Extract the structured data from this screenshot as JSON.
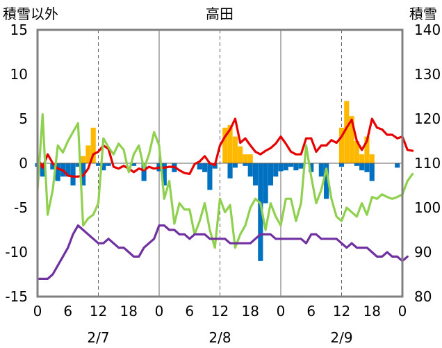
{
  "chart_data": {
    "type": "bar+line",
    "title": "高田",
    "y_left_label": "積雪以外",
    "y_right_label": "積雪",
    "y_left_range": [
      -15,
      15
    ],
    "y_right_range": [
      80,
      140
    ],
    "y_left_ticks": [
      "15",
      "10",
      "5",
      "0",
      "-5",
      "-10",
      "-15"
    ],
    "y_right_ticks": [
      "140",
      "130",
      "120",
      "110",
      "100",
      "90",
      "80"
    ],
    "x_range_hours": [
      0,
      72
    ],
    "x_tick_labels": [
      "0",
      "6",
      "12",
      "18",
      "0",
      "6",
      "12",
      "18",
      "0",
      "6",
      "12",
      "18",
      "0"
    ],
    "date_labels": [
      "2/7",
      "2/8",
      "2/9"
    ],
    "grid": "vertical dashed at 12h, solid at day boundaries",
    "legend": "none",
    "colors": {
      "snowfall_bar": "#FFB800",
      "depth_change_bar": "#0070C0",
      "red_series": "#E60000",
      "green_series": "#8FD14F",
      "purple_series": "#7030A0",
      "axis": "#808080"
    },
    "series": [
      {
        "axis": "left",
        "kind": "bar",
        "color": "#FFB800",
        "points": [
          [
            9,
            0.8
          ],
          [
            10,
            2
          ],
          [
            11,
            4
          ],
          [
            37,
            4
          ],
          [
            38,
            4.3
          ],
          [
            39,
            3
          ],
          [
            40,
            1.9
          ],
          [
            41,
            1
          ],
          [
            42,
            1
          ],
          [
            60,
            4
          ],
          [
            61,
            7
          ],
          [
            62,
            5.3
          ],
          [
            63,
            2.5
          ],
          [
            64,
            1
          ],
          [
            65,
            3
          ],
          [
            66,
            1
          ]
        ]
      },
      {
        "axis": "left",
        "kind": "bar",
        "color": "#0070C0",
        "points": [
          [
            0,
            -0.4
          ],
          [
            1,
            -1.5
          ],
          [
            3,
            -0.7
          ],
          [
            4,
            -2
          ],
          [
            5,
            -1.5
          ],
          [
            6,
            -1.5
          ],
          [
            7,
            -2.5
          ],
          [
            8,
            -0.4
          ],
          [
            9,
            -2.5
          ],
          [
            12,
            -0.3
          ],
          [
            13,
            -0.8
          ],
          [
            14,
            -0.3
          ],
          [
            19,
            -0.3
          ],
          [
            21,
            -2
          ],
          [
            24,
            -0.9
          ],
          [
            25,
            -2.5
          ],
          [
            27,
            -1
          ],
          [
            32,
            -0.7
          ],
          [
            33,
            -1
          ],
          [
            34,
            -3
          ],
          [
            35,
            -0.6
          ],
          [
            38,
            -1.7
          ],
          [
            39,
            -0.5
          ],
          [
            41,
            -0.3
          ],
          [
            42,
            -1.5
          ],
          [
            43,
            -2.5
          ],
          [
            44,
            -11
          ],
          [
            45,
            -4.5
          ],
          [
            46,
            -2.5
          ],
          [
            47,
            -1.5
          ],
          [
            48,
            -0.9
          ],
          [
            49,
            -0.8
          ],
          [
            50,
            -0.4
          ],
          [
            51,
            -0.8
          ],
          [
            52,
            -0.6
          ],
          [
            54,
            -1
          ],
          [
            56,
            -1.5
          ],
          [
            57,
            -4
          ],
          [
            60,
            -0.4
          ],
          [
            63,
            -0.3
          ],
          [
            64,
            -0.8
          ],
          [
            65,
            -1
          ],
          [
            66,
            -2
          ],
          [
            71,
            -0.5
          ]
        ]
      },
      {
        "axis": "left",
        "kind": "line",
        "color": "#E60000",
        "points": [
          [
            0,
            0.6
          ],
          [
            1,
            -0.5
          ],
          [
            2,
            1
          ],
          [
            3,
            0
          ],
          [
            4,
            -0.6
          ],
          [
            5,
            -0.8
          ],
          [
            6,
            -1.4
          ],
          [
            7,
            -1.5
          ],
          [
            8,
            -1.5
          ],
          [
            9,
            -1.4
          ],
          [
            10,
            -0.6
          ],
          [
            11,
            1
          ],
          [
            12,
            1.3
          ],
          [
            13,
            2
          ],
          [
            14,
            1.6
          ],
          [
            15,
            -0.4
          ],
          [
            16,
            -0.6
          ],
          [
            17,
            -0.3
          ],
          [
            18,
            -0.6
          ],
          [
            19,
            -1
          ],
          [
            20,
            -0.6
          ],
          [
            21,
            -0.8
          ],
          [
            22,
            -0.4
          ],
          [
            23,
            -0.6
          ],
          [
            24,
            -0.5
          ],
          [
            25,
            -0.5
          ],
          [
            26,
            -0.4
          ],
          [
            27,
            -0.4
          ],
          [
            28,
            -0.8
          ],
          [
            29,
            -1.1
          ],
          [
            30,
            -1.2
          ],
          [
            31,
            -0.1
          ],
          [
            32,
            0.2
          ],
          [
            33,
            0.8
          ],
          [
            34,
            0
          ],
          [
            35,
            -0.2
          ],
          [
            36,
            2
          ],
          [
            37,
            3
          ],
          [
            38,
            3.8
          ],
          [
            39,
            5
          ],
          [
            40,
            2.3
          ],
          [
            41,
            2.8
          ],
          [
            42,
            2
          ],
          [
            43,
            1.3
          ],
          [
            44,
            1
          ],
          [
            45,
            1.4
          ],
          [
            46,
            1.7
          ],
          [
            47,
            2.2
          ],
          [
            48,
            3
          ],
          [
            49,
            2.2
          ],
          [
            50,
            1.3
          ],
          [
            51,
            1
          ],
          [
            52,
            1
          ],
          [
            53,
            2.8
          ],
          [
            54,
            2.8
          ],
          [
            55,
            1.3
          ],
          [
            56,
            2
          ],
          [
            57,
            2
          ],
          [
            58,
            2.6
          ],
          [
            59,
            2.3
          ],
          [
            60,
            3
          ],
          [
            61,
            4
          ],
          [
            62,
            4.9
          ],
          [
            63,
            2.5
          ],
          [
            64,
            1.5
          ],
          [
            65,
            2.5
          ],
          [
            66,
            5
          ],
          [
            67,
            4
          ],
          [
            68,
            3.8
          ],
          [
            69,
            3.2
          ],
          [
            70,
            3.2
          ],
          [
            71,
            2.8
          ],
          [
            72,
            3
          ],
          [
            73,
            1.5
          ],
          [
            74,
            1.4
          ]
        ]
      },
      {
        "axis": "left",
        "kind": "line",
        "color": "#8FD14F",
        "points": [
          [
            0,
            -3
          ],
          [
            1,
            5.5
          ],
          [
            2,
            -5.8
          ],
          [
            3,
            -3
          ],
          [
            4,
            2
          ],
          [
            5,
            1.2
          ],
          [
            6,
            2.5
          ],
          [
            7,
            3.5
          ],
          [
            8,
            4.5
          ],
          [
            9,
            -7
          ],
          [
            10,
            -6.2
          ],
          [
            11,
            -5.8
          ],
          [
            12,
            -4.5
          ],
          [
            13,
            2.8
          ],
          [
            14,
            1.8
          ],
          [
            15,
            1
          ],
          [
            16,
            2.2
          ],
          [
            17,
            1.5
          ],
          [
            18,
            -1
          ],
          [
            19,
            1
          ],
          [
            20,
            2
          ],
          [
            21,
            -0.6
          ],
          [
            22,
            1
          ],
          [
            23,
            3.5
          ],
          [
            24,
            2
          ],
          [
            25,
            -4
          ],
          [
            26,
            -2
          ],
          [
            27,
            -6.8
          ],
          [
            28,
            -4.5
          ],
          [
            29,
            -5.2
          ],
          [
            30,
            -5.2
          ],
          [
            31,
            -8
          ],
          [
            32,
            -6.5
          ],
          [
            33,
            -4.5
          ],
          [
            34,
            -7.5
          ],
          [
            35,
            -9.5
          ],
          [
            36,
            -4
          ],
          [
            37,
            -5.5
          ],
          [
            38,
            -4.7
          ],
          [
            39,
            -9.5
          ],
          [
            40,
            -8
          ],
          [
            41,
            -7
          ],
          [
            42,
            -5
          ],
          [
            43,
            -4
          ],
          [
            44,
            -4.5
          ],
          [
            45,
            -7.5
          ],
          [
            46,
            -4.5
          ],
          [
            47,
            -6
          ],
          [
            48,
            -7
          ],
          [
            49,
            -4
          ],
          [
            50,
            -4
          ],
          [
            51,
            -6.5
          ],
          [
            52,
            -4.5
          ],
          [
            53,
            2
          ],
          [
            54,
            -1.5
          ],
          [
            55,
            -4.5
          ],
          [
            56,
            -3
          ],
          [
            57,
            -0.6
          ],
          [
            58,
            -4
          ],
          [
            59,
            -6
          ],
          [
            60,
            -6.5
          ],
          [
            61,
            -5
          ],
          [
            62,
            -5.5
          ],
          [
            63,
            -6
          ],
          [
            64,
            -4.5
          ],
          [
            65,
            -5.8
          ],
          [
            66,
            -3.8
          ],
          [
            67,
            -4
          ],
          [
            68,
            -3.5
          ],
          [
            69,
            -3.8
          ],
          [
            70,
            -4
          ],
          [
            71,
            -3.8
          ],
          [
            72,
            -3.5
          ],
          [
            73,
            -2
          ],
          [
            74,
            -1.2
          ]
        ]
      },
      {
        "axis": "right",
        "kind": "line",
        "color": "#7030A0",
        "points": [
          [
            0,
            84
          ],
          [
            1,
            84
          ],
          [
            2,
            84
          ],
          [
            3,
            85
          ],
          [
            4,
            87
          ],
          [
            5,
            89
          ],
          [
            6,
            91
          ],
          [
            7,
            94
          ],
          [
            8,
            96
          ],
          [
            9,
            95
          ],
          [
            10,
            94
          ],
          [
            11,
            93
          ],
          [
            12,
            92
          ],
          [
            13,
            92
          ],
          [
            14,
            93
          ],
          [
            15,
            92
          ],
          [
            16,
            91
          ],
          [
            17,
            91
          ],
          [
            18,
            90
          ],
          [
            19,
            89
          ],
          [
            20,
            89
          ],
          [
            21,
            91
          ],
          [
            22,
            92
          ],
          [
            23,
            93
          ],
          [
            24,
            96
          ],
          [
            25,
            96
          ],
          [
            26,
            95
          ],
          [
            27,
            95
          ],
          [
            28,
            94
          ],
          [
            29,
            94
          ],
          [
            30,
            93
          ],
          [
            31,
            94
          ],
          [
            32,
            94
          ],
          [
            33,
            94
          ],
          [
            34,
            93
          ],
          [
            35,
            93
          ],
          [
            36,
            93
          ],
          [
            37,
            93
          ],
          [
            38,
            92
          ],
          [
            39,
            92
          ],
          [
            40,
            92
          ],
          [
            41,
            92
          ],
          [
            42,
            92
          ],
          [
            43,
            93
          ],
          [
            44,
            94
          ],
          [
            45,
            94
          ],
          [
            46,
            94
          ],
          [
            47,
            93
          ],
          [
            48,
            93
          ],
          [
            49,
            93
          ],
          [
            50,
            93
          ],
          [
            51,
            93
          ],
          [
            52,
            93
          ],
          [
            53,
            92
          ],
          [
            54,
            94
          ],
          [
            55,
            94
          ],
          [
            56,
            93
          ],
          [
            57,
            93
          ],
          [
            58,
            93
          ],
          [
            59,
            93
          ],
          [
            60,
            92
          ],
          [
            61,
            91
          ],
          [
            62,
            92
          ],
          [
            63,
            91
          ],
          [
            64,
            91
          ],
          [
            65,
            91
          ],
          [
            66,
            90
          ],
          [
            67,
            89
          ],
          [
            68,
            89
          ],
          [
            69,
            90
          ],
          [
            70,
            89
          ],
          [
            71,
            89
          ],
          [
            72,
            88
          ],
          [
            73,
            89
          ]
        ]
      }
    ]
  }
}
